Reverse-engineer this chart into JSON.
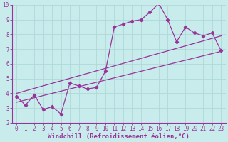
{
  "xlabel": "Windchill (Refroidissement éolien,°C)",
  "xlim": [
    -0.5,
    23.5
  ],
  "ylim": [
    2,
    10
  ],
  "xticks": [
    0,
    1,
    2,
    3,
    4,
    5,
    6,
    7,
    8,
    9,
    10,
    11,
    12,
    13,
    14,
    15,
    16,
    17,
    18,
    19,
    20,
    21,
    22,
    23
  ],
  "yticks": [
    2,
    3,
    4,
    5,
    6,
    7,
    8,
    9,
    10
  ],
  "background_color": "#c8ecec",
  "grid_color": "#b0d8d8",
  "line_color": "#993399",
  "series1_x": [
    0,
    1,
    2,
    3,
    4,
    5,
    6,
    7,
    8,
    9,
    10,
    11,
    12,
    13,
    14,
    15,
    16,
    17,
    18,
    19,
    20,
    21,
    22,
    23
  ],
  "series1_y": [
    3.8,
    3.2,
    3.9,
    2.9,
    3.1,
    2.6,
    4.7,
    4.5,
    4.3,
    4.4,
    5.5,
    8.5,
    8.7,
    8.9,
    9.0,
    9.5,
    10.1,
    9.0,
    7.5,
    8.5,
    8.1,
    7.9,
    8.1,
    6.9
  ],
  "series2_x": [
    0,
    23
  ],
  "series2_y": [
    3.4,
    6.85
  ],
  "series3_x": [
    0,
    23
  ],
  "series3_y": [
    4.0,
    7.9
  ],
  "font_family": "monospace",
  "tick_fontsize": 5.5,
  "label_fontsize": 6.5,
  "figsize": [
    3.2,
    2.0
  ],
  "dpi": 100
}
